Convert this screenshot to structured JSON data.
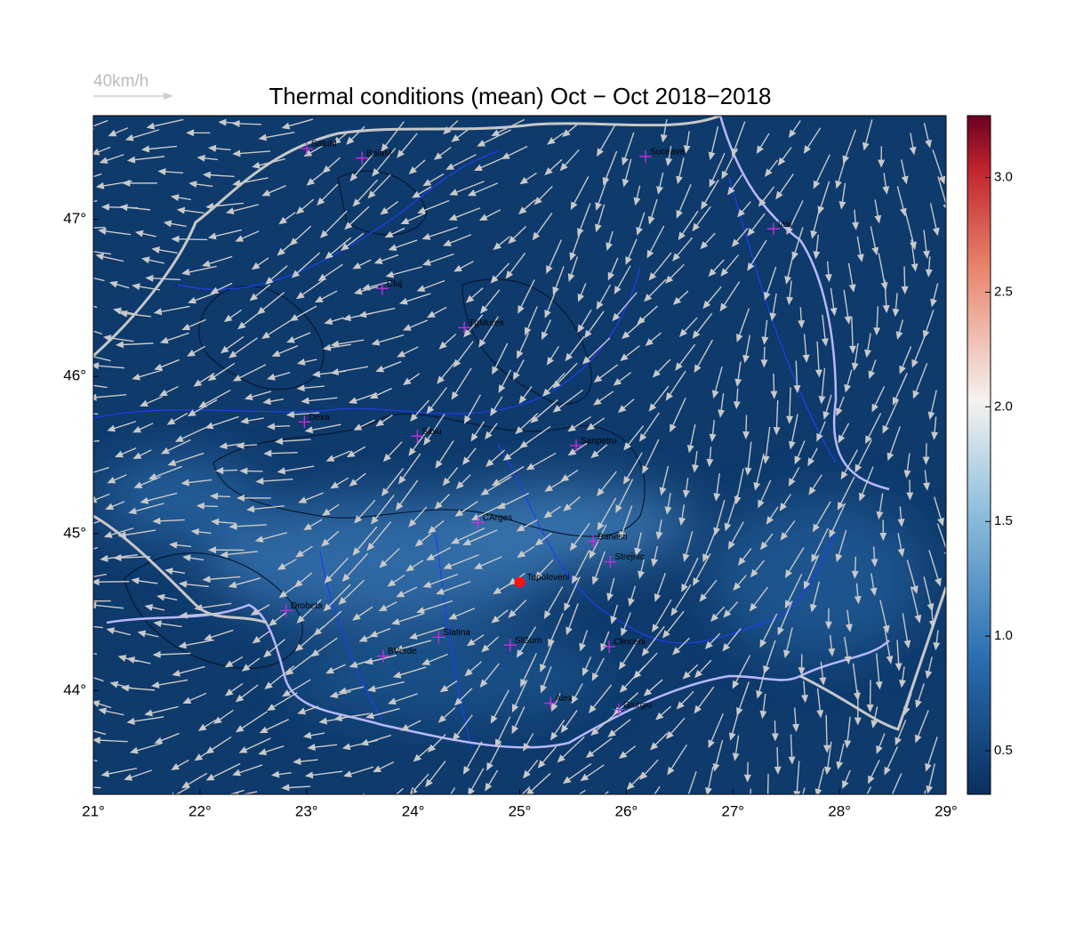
{
  "title": "Thermal conditions (mean) Oct − Oct  2018−2018",
  "scale_label": "40km/h",
  "map": {
    "xlim": [
      21,
      29
    ],
    "ylim": [
      43.34,
      47.66
    ],
    "xticks": [
      {
        "value": 21,
        "label": "21°"
      },
      {
        "value": 22,
        "label": "22°"
      },
      {
        "value": 23,
        "label": "23°"
      },
      {
        "value": 24,
        "label": "24°"
      },
      {
        "value": 25,
        "label": "25°"
      },
      {
        "value": 26,
        "label": "26°"
      },
      {
        "value": 27,
        "label": "27°"
      },
      {
        "value": 28,
        "label": "28°"
      },
      {
        "value": 29,
        "label": "29°"
      }
    ],
    "yticks": [
      {
        "value": 44,
        "label": "44°"
      },
      {
        "value": 45,
        "label": "45°"
      },
      {
        "value": 46,
        "label": "46°"
      },
      {
        "value": 47,
        "label": "47°"
      }
    ]
  },
  "colorbar": {
    "lim": [
      0.31,
      3.27
    ],
    "ticks": [
      0.5,
      {
        "value": 1,
        "label": "1.0"
      },
      1.5,
      {
        "value": 2,
        "label": "2.0"
      },
      2.5,
      {
        "value": 3,
        "label": "3.0"
      }
    ]
  },
  "cities": [
    {
      "name": "SatuM",
      "lon": 23.0,
      "lat": 47.45
    },
    {
      "name": "BaiaM",
      "lon": 23.52,
      "lat": 47.39
    },
    {
      "name": "Suceava",
      "lon": 26.18,
      "lat": 47.4
    },
    {
      "name": "Iasi",
      "lon": 27.38,
      "lat": 46.94
    },
    {
      "name": "Cluj",
      "lon": 23.71,
      "lat": 46.56
    },
    {
      "name": "TgMures",
      "lon": 24.48,
      "lat": 46.31
    },
    {
      "name": "Deva",
      "lon": 22.98,
      "lat": 45.71
    },
    {
      "name": "Sibiu",
      "lon": 24.04,
      "lat": 45.62
    },
    {
      "name": "Sanpetru",
      "lon": 25.53,
      "lat": 45.56
    },
    {
      "name": "CArges",
      "lon": 24.61,
      "lat": 45.07
    },
    {
      "name": "Banesti",
      "lon": 25.69,
      "lat": 44.95
    },
    {
      "name": "Strejnic",
      "lon": 25.85,
      "lat": 44.82
    },
    {
      "name": "Drobeta",
      "lon": 22.81,
      "lat": 44.51
    },
    {
      "name": "Slatina",
      "lon": 24.24,
      "lat": 44.34
    },
    {
      "name": "SlGum",
      "lon": 24.91,
      "lat": 44.29
    },
    {
      "name": "BVerde",
      "lon": 23.72,
      "lat": 44.22
    },
    {
      "name": "Clinceni",
      "lon": 25.84,
      "lat": 44.28
    },
    {
      "name": "Alex",
      "lon": 25.29,
      "lat": 43.92
    },
    {
      "name": "Giurgiu",
      "lon": 25.93,
      "lat": 43.88
    }
  ],
  "highlight": {
    "name": "Topoloveni",
    "lon": 25.0,
    "lat": 44.69
  }
}
